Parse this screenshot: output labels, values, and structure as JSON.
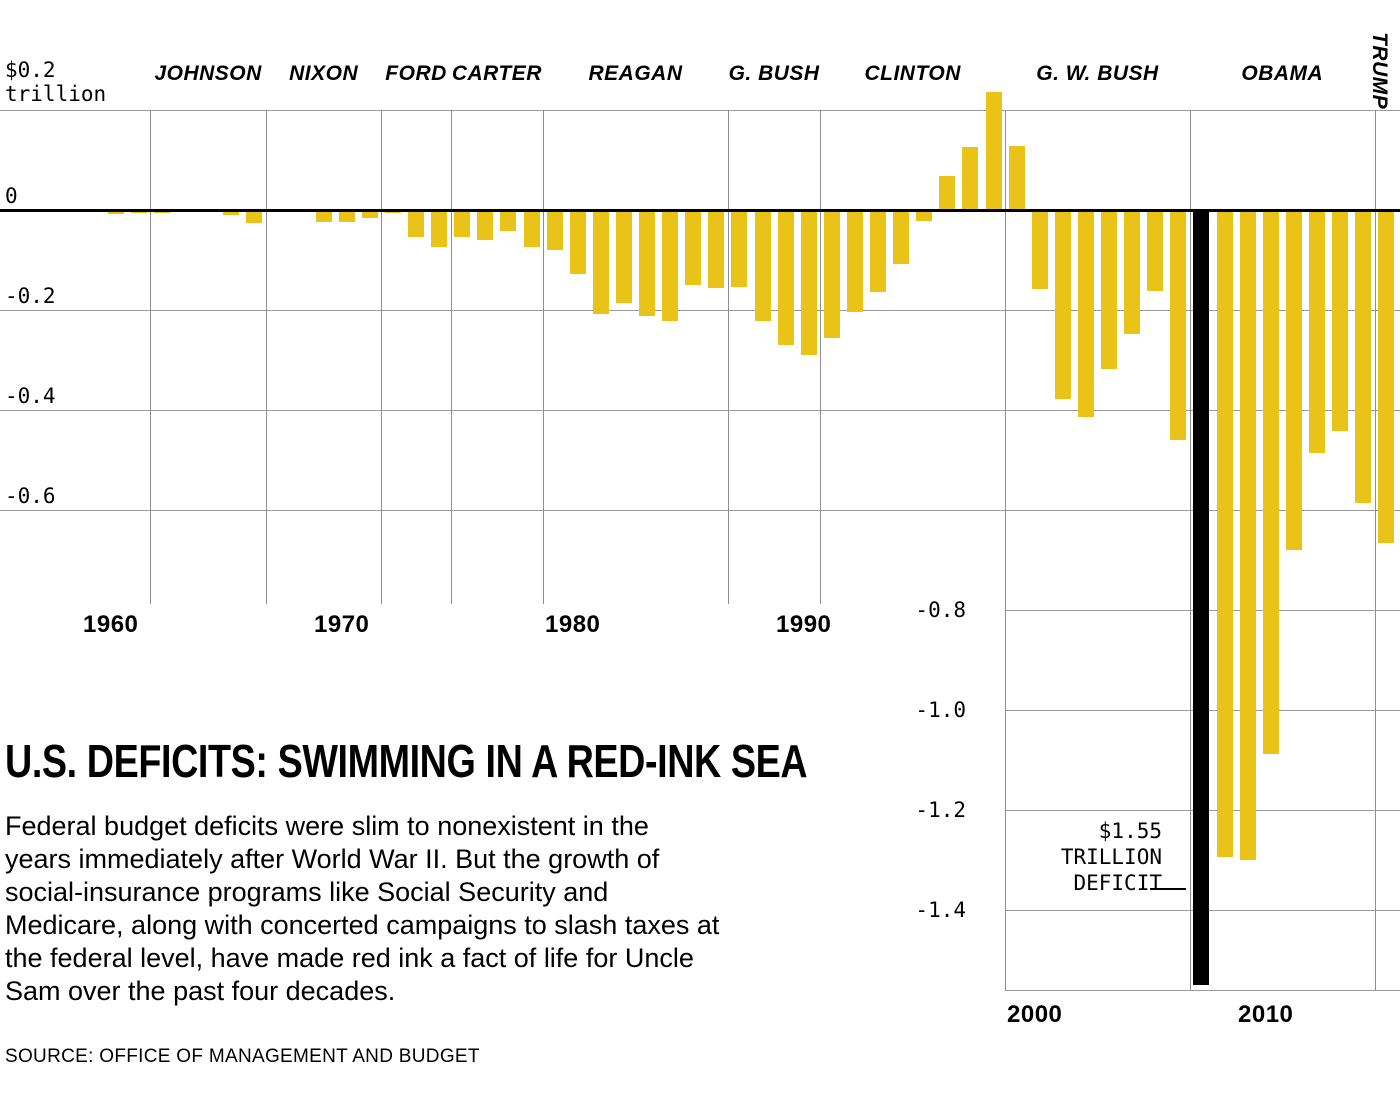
{
  "chart_data": {
    "type": "bar",
    "title": "U.S. DEFICITS: SWIMMING IN A RED-INK SEA",
    "unit": "trillions of dollars",
    "bar_color": "#e9c318",
    "highlight_color": "#000000",
    "ylim": [
      -1.55,
      0.25
    ],
    "years": [
      1960,
      1961,
      1962,
      1963,
      1964,
      1965,
      1966,
      1967,
      1968,
      1969,
      1970,
      1971,
      1972,
      1973,
      1974,
      1975,
      1976,
      1977,
      1978,
      1979,
      1980,
      1981,
      1982,
      1983,
      1984,
      1985,
      1986,
      1987,
      1988,
      1989,
      1990,
      1991,
      1992,
      1993,
      1994,
      1995,
      1996,
      1997,
      1998,
      1999,
      2000,
      2001,
      2002,
      2003,
      2004,
      2005,
      2006,
      2007,
      2008,
      2009,
      2010,
      2011,
      2012,
      2013,
      2014,
      2015,
      2016,
      2017
    ],
    "values": [
      0.0,
      -0.003,
      -0.007,
      -0.005,
      -0.006,
      -0.001,
      -0.004,
      -0.009,
      -0.025,
      0.003,
      -0.003,
      -0.023,
      -0.023,
      -0.015,
      -0.006,
      -0.053,
      -0.074,
      -0.054,
      -0.059,
      -0.041,
      -0.074,
      -0.079,
      -0.128,
      -0.208,
      -0.185,
      -0.212,
      -0.221,
      -0.15,
      -0.155,
      -0.153,
      -0.221,
      -0.269,
      -0.29,
      -0.255,
      -0.203,
      -0.164,
      -0.107,
      -0.022,
      0.069,
      0.126,
      0.236,
      0.128,
      -0.158,
      -0.378,
      -0.413,
      -0.318,
      -0.248,
      -0.161,
      -0.459,
      -1.55,
      -1.294,
      -1.3,
      -1.087,
      -0.68,
      -0.485,
      -0.442,
      -0.585,
      -0.665
    ],
    "highlight": {
      "year": 2009,
      "label_lines": [
        "$1.55",
        "TRILLION",
        "DEFICIT"
      ]
    },
    "y_axis": {
      "top_label_lines": [
        "$0.2",
        "trillion"
      ],
      "zero_label": "0",
      "upper_ticks": [
        "-0.2",
        "-0.4",
        "-0.6"
      ],
      "lower_ticks": [
        "-0.8",
        "-1.0",
        "-1.2",
        "-1.4"
      ]
    },
    "x_axis": {
      "upper_decades": [
        "1960",
        "1970",
        "1980",
        "1990"
      ],
      "lower_decades": [
        "2000",
        "2010"
      ]
    },
    "presidents": [
      {
        "name": "JOHNSON",
        "start_year": 1964
      },
      {
        "name": "NIXON",
        "start_year": 1969
      },
      {
        "name": "FORD",
        "start_year": 1974
      },
      {
        "name": "CARTER",
        "start_year": 1977
      },
      {
        "name": "REAGAN",
        "start_year": 1981
      },
      {
        "name": "G. BUSH",
        "start_year": 1989
      },
      {
        "name": "CLINTON",
        "start_year": 1993
      },
      {
        "name": "G. W. BUSH",
        "start_year": 2001
      },
      {
        "name": "OBAMA",
        "start_year": 2009
      },
      {
        "name": "TRUMP",
        "start_year": 2017,
        "rotated": true
      }
    ],
    "grid": true,
    "legend": false
  },
  "body": {
    "paragraph_lines": [
      "Federal budget deficits were slim to nonexistent in the",
      "years immediately after World War II. But the growth of",
      "social-insurance programs like Social Security and",
      "Medicare, along with concerted campaigns to slash taxes at",
      "the federal level, have made red ink a fact of life for Uncle",
      "Sam over the past four decades."
    ],
    "source_line": "SOURCE: OFFICE OF MANAGEMENT AND BUDGET"
  },
  "colors": {
    "bar": "#e9c318",
    "highlight_bar": "#000000",
    "gridline": "#9a9a9a",
    "axis": "#000000",
    "background": "#ffffff",
    "text": "#000000"
  }
}
